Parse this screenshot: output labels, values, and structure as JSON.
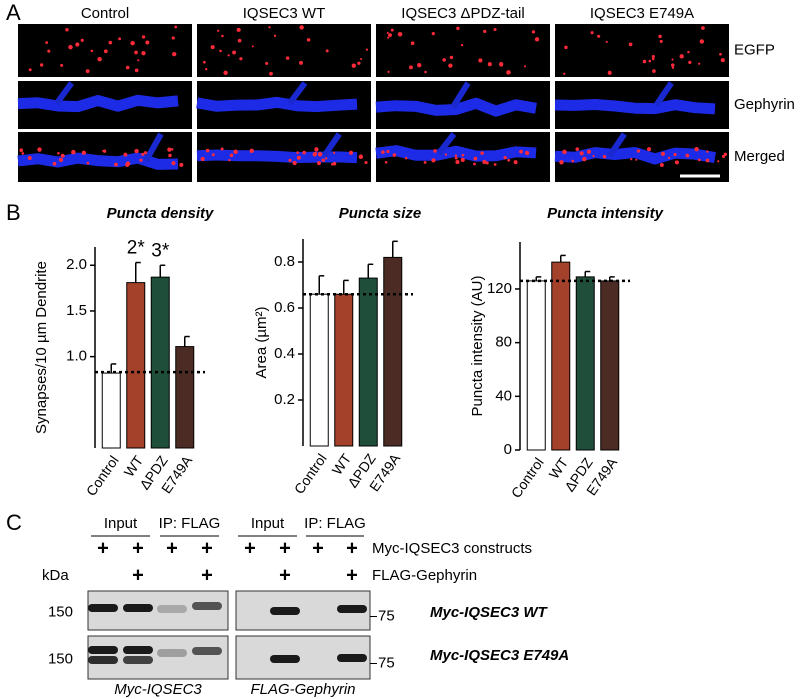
{
  "panel_a": {
    "label": "A",
    "columns": [
      "Control",
      "IQSEC3 WT",
      "IQSEC3 ΔPDZ-tail",
      "IQSEC3 E749A"
    ],
    "rows": [
      "EGFP",
      "Gephyrin",
      "Merged"
    ]
  },
  "panel_b": {
    "label": "B"
  },
  "chart_data": [
    {
      "type": "bar",
      "title": "Puncta density",
      "y_label": "Synapses/10 µm Dendrite",
      "categories": [
        "Control",
        "WT",
        "ΔPDZ",
        "E749A"
      ],
      "values": [
        0.82,
        1.81,
        1.87,
        1.11
      ],
      "errors": [
        0.1,
        0.22,
        0.13,
        0.11
      ],
      "colors": [
        "#ffffff",
        "#a3412a",
        "#1f4e3b",
        "#4b2b24"
      ],
      "value_annotations": [
        null,
        "2*",
        "3*",
        null
      ],
      "reference_line": 0.83,
      "ylim": [
        0,
        2.2
      ],
      "yticks": [
        {
          "value": 1,
          "label": "1.0"
        },
        1.5,
        {
          "value": 2,
          "label": "2.0"
        }
      ]
    },
    {
      "type": "bar",
      "title": "Puncta size",
      "y_label": "Area (µm²)",
      "categories": [
        "Control",
        "WT",
        "ΔPDZ",
        "E749A"
      ],
      "values": [
        0.66,
        0.66,
        0.73,
        0.82
      ],
      "errors": [
        0.08,
        0.06,
        0.06,
        0.07
      ],
      "colors": [
        "#ffffff",
        "#a3412a",
        "#1f4e3b",
        "#4b2b24"
      ],
      "reference_line": 0.66,
      "ylim": [
        0,
        0.9
      ],
      "yticks": [
        0.2,
        0.4,
        0.6,
        0.8
      ]
    },
    {
      "type": "bar",
      "title": "Puncta intensity",
      "y_label": "Puncta intensity (AU)",
      "categories": [
        "Control",
        "WT",
        "ΔPDZ",
        "E749A"
      ],
      "values": [
        126,
        140,
        129,
        126
      ],
      "errors": [
        3,
        5,
        4,
        3
      ],
      "colors": [
        "#ffffff",
        "#a3412a",
        "#1f4e3b",
        "#4b2b24"
      ],
      "reference_line": 126,
      "ylim": [
        0,
        155
      ],
      "yticks": [
        0,
        40,
        80,
        120
      ]
    }
  ],
  "panel_c": {
    "label": "C",
    "kda": "kDa",
    "row_labels": [
      "Myc-IQSEC3 constructs",
      "FLAG-Gephyrin"
    ],
    "blot_rows": [
      "Myc-IQSEC3 WT",
      "Myc-IQSEC3 E749A"
    ],
    "blots": [
      {
        "headers": [
          "Input",
          "IP: FLAG"
        ],
        "constructs": [
          "+",
          "+",
          "+",
          "+"
        ],
        "gephyrin": [
          "+",
          "+"
        ],
        "markers": [
          "150",
          "150"
        ],
        "caption": "Myc-IQSEC3"
      },
      {
        "headers": [
          "Input",
          "IP: FLAG"
        ],
        "constructs": [
          "+",
          "+",
          "+",
          "+"
        ],
        "gephyrin": [
          "+",
          "+"
        ],
        "markers": [
          "75",
          "75"
        ],
        "caption": "FLAG-Gephyrin"
      }
    ]
  }
}
